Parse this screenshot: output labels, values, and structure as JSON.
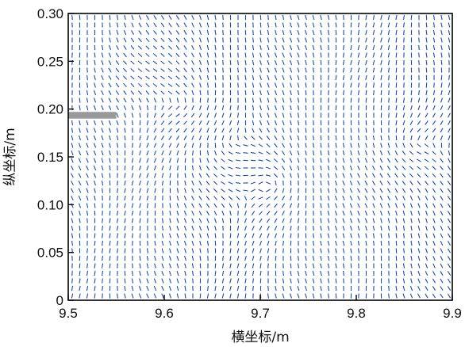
{
  "chart_data": {
    "type": "scatter",
    "subtype": "vector-field",
    "title": "",
    "xlabel": "横坐标/m",
    "ylabel": "纵坐标/m",
    "xlim": [
      9.5,
      9.9
    ],
    "ylim": [
      0,
      0.3
    ],
    "xticks": [
      "9.5",
      "9.6",
      "9.7",
      "9.8",
      "9.9"
    ],
    "yticks": [
      "0",
      "0.05",
      "0.10",
      "0.15",
      "0.20",
      "0.25",
      "0.30"
    ],
    "grid": false,
    "legend": "none",
    "vector_color": "#1f4e9c",
    "obstacle_color": "#999999",
    "obstacle": {
      "x": [
        9.5,
        9.55
      ],
      "y": [
        0.19,
        0.197
      ]
    },
    "vortices": [
      {
        "x": 9.625,
        "y": 0.205
      },
      {
        "x": 9.665,
        "y": 0.163
      },
      {
        "x": 9.715,
        "y": 0.122
      },
      {
        "x": 9.855,
        "y": 0.165
      }
    ]
  }
}
